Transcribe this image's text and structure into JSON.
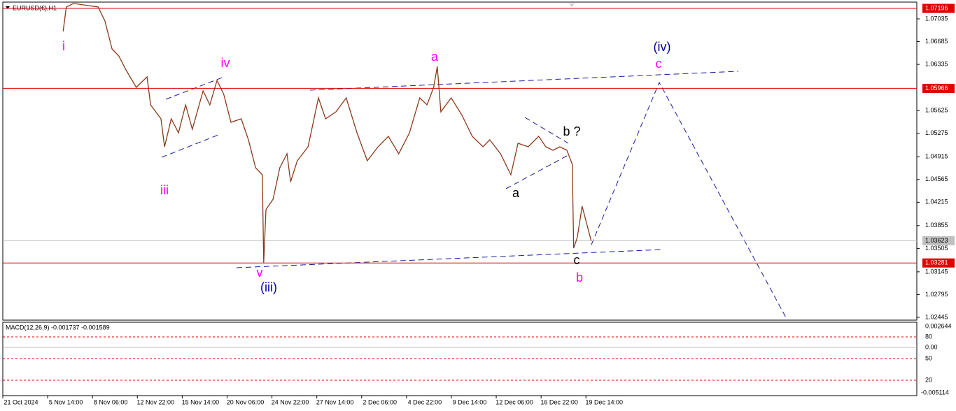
{
  "chart_data": {
    "type": "line",
    "title": "EURUSD(€),H1",
    "color": "#8a3a1a",
    "x": [
      0.94,
      1.01,
      1.17,
      1.72,
      1.87,
      2.03,
      2.18,
      2.34,
      2.57,
      2.81,
      2.89,
      3.12,
      3.2,
      3.35,
      3.51,
      3.67,
      3.82,
      4.06,
      4.21,
      4.37,
      4.52,
      4.68,
      4.91,
      5.07,
      5.23,
      5.38,
      5.41,
      5.46,
      5.62,
      5.77,
      5.93,
      6.01,
      6.16,
      6.4,
      6.63,
      6.79,
      7.02,
      7.25,
      7.49,
      7.72,
      7.96,
      8.19,
      8.42,
      8.66,
      8.89,
      9.05,
      9.2,
      9.28,
      9.36,
      9.59,
      9.83,
      10.06,
      10.3,
      10.45,
      10.69,
      10.92,
      11.08,
      11.31,
      11.54,
      11.7,
      11.86,
      12.01,
      12.17,
      12.29,
      12.32,
      12.4,
      12.51,
      12.61,
      12.71
    ],
    "values": [
      1.06841,
      1.07218,
      1.07272,
      1.07218,
      1.07003,
      1.06573,
      1.06465,
      1.0625,
      1.05982,
      1.06143,
      1.05713,
      1.05498,
      1.05068,
      1.05498,
      1.05283,
      1.05713,
      1.05336,
      1.05928,
      1.05713,
      1.06089,
      1.05874,
      1.05444,
      1.05498,
      1.05175,
      1.04745,
      1.04638,
      1.03281,
      1.041,
      1.04262,
      1.04745,
      1.0496,
      1.0453,
      1.04853,
      1.05068,
      1.0582,
      1.05498,
      1.05605,
      1.0582,
      1.05283,
      1.04853,
      1.05068,
      1.05229,
      1.0496,
      1.05283,
      1.0582,
      1.05713,
      1.05982,
      1.06304,
      1.05605,
      1.0582,
      1.05552,
      1.05229,
      1.05068,
      1.05175,
      1.0496,
      1.04638,
      1.05122,
      1.05068,
      1.05229,
      1.05068,
      1.05014,
      1.05068,
      1.05014,
      1.04799,
      1.03509,
      1.0367,
      1.04154,
      1.03885,
      1.03623
    ],
    "xlim": [
      -0.468,
      19.97
    ],
    "xticks": [
      {
        "value": 0,
        "label": "21 Oct 2024"
      },
      {
        "value": 1,
        "label": "5 Nov 14:00"
      },
      {
        "value": 2,
        "label": "8 Nov 06:00"
      },
      {
        "value": 3,
        "label": "12 Nov 22:00"
      },
      {
        "value": 4,
        "label": "15 Nov 14:00"
      },
      {
        "value": 5,
        "label": "20 Nov 06:00"
      },
      {
        "value": 6,
        "label": "24 Nov 22:00"
      },
      {
        "value": 7,
        "label": "27 Nov 14:00"
      },
      {
        "value": 8,
        "label": "2 Dec 06:00"
      },
      {
        "value": 9,
        "label": "4 Dec 22:00"
      },
      {
        "value": 10,
        "label": "9 Dec 14:00"
      },
      {
        "value": 11,
        "label": "12 Dec 06:00"
      },
      {
        "value": 12,
        "label": "16 Dec 22:00"
      },
      {
        "value": 13,
        "label": "19 Dec 14:00"
      }
    ],
    "ylim": [
      1.02402,
      1.07325
    ],
    "yticks": [
      1.07035,
      1.06685,
      1.06335,
      1.05625,
      1.05275,
      1.04915,
      1.04565,
      1.04215,
      1.03855,
      1.03505,
      1.03145,
      1.02795,
      1.02445
    ],
    "levels": [
      {
        "value": 1.07196,
        "color": "#e00000"
      },
      {
        "value": 1.05966,
        "color": "#e00000"
      },
      {
        "value": 1.03623,
        "color": "#c0c0c0"
      },
      {
        "value": 1.03281,
        "color": "#e00000"
      }
    ],
    "annotations": [
      {
        "text": "i",
        "color": "#ff00ff"
      },
      {
        "text": "iv",
        "color": "#ff00ff"
      },
      {
        "text": "iii",
        "color": "#ff00ff"
      },
      {
        "text": "v",
        "color": "#ff00ff"
      },
      {
        "text": "(iii)",
        "color": "#0000a0"
      },
      {
        "text": "a",
        "color": "#ff00ff"
      },
      {
        "text": "(iv)",
        "color": "#0000a0"
      },
      {
        "text": "c",
        "color": "#ff00ff"
      },
      {
        "text": "b ?",
        "color": "#000000"
      },
      {
        "text": "a",
        "color": "#000000"
      },
      {
        "text": "c",
        "color": "#000000"
      },
      {
        "text": "b",
        "color": "#ff00ff"
      }
    ]
  },
  "indicator": {
    "title": "MACD(12,26,9) -0.001737 -0.001589",
    "axis_labels": [
      "0.002644",
      "80",
      "0.00",
      "50",
      "20",
      "-0.005114"
    ]
  }
}
